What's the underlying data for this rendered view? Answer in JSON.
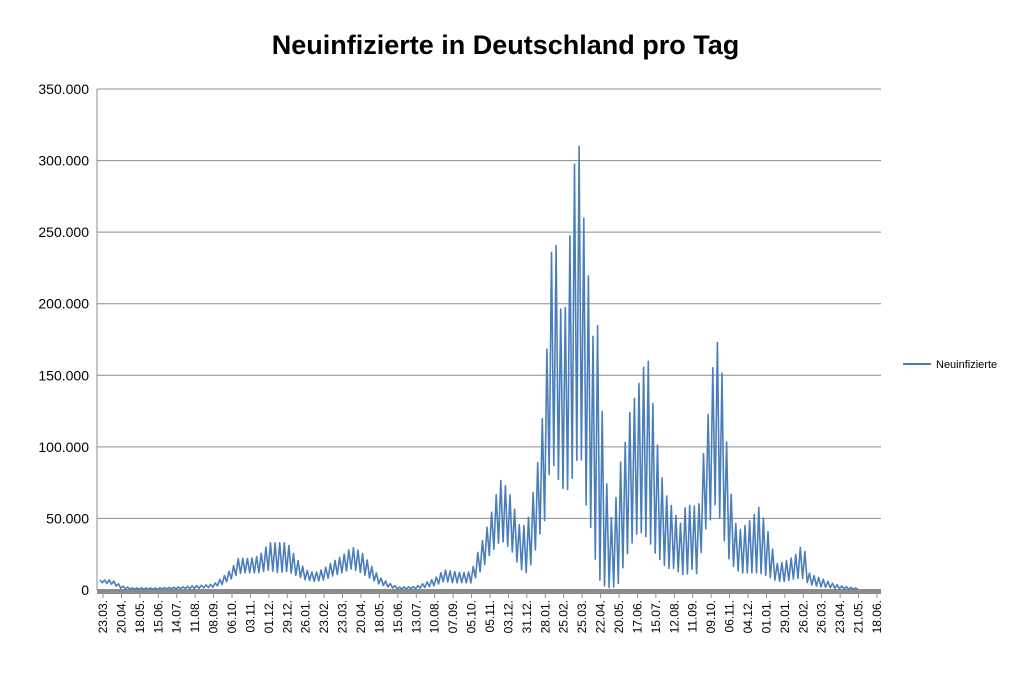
{
  "chart_data": {
    "type": "line",
    "title": "Neuinfizierte in Deutschland pro Tag",
    "xlabel": "",
    "ylabel": "",
    "ylim": [
      0,
      350000
    ],
    "y_ticks": [
      0,
      50000,
      100000,
      150000,
      200000,
      250000,
      300000,
      350000
    ],
    "y_tick_labels": [
      "0",
      "50.000",
      "100.000",
      "150.000",
      "200.000",
      "250.000",
      "300.000",
      "350.000"
    ],
    "x_tick_labels": [
      "23.03.",
      "20.04.",
      "18.05.",
      "15.06.",
      "14.07.",
      "11.08.",
      "08.09.",
      "06.10.",
      "03.11.",
      "01.12.",
      "29.12.",
      "26.01.",
      "23.02.",
      "23.03.",
      "20.04.",
      "18.05.",
      "15.06.",
      "13.07.",
      "10.08.",
      "07.09.",
      "05.10.",
      "05.11.",
      "03.12.",
      "31.12.",
      "28.01.",
      "25.02.",
      "25.03.",
      "22.04.",
      "20.05.",
      "17.06.",
      "15.07.",
      "12.08.",
      "11.09.",
      "09.10.",
      "06.11.",
      "04.12.",
      "01.01.",
      "29.01.",
      "26.02.",
      "26.03.",
      "23.04.",
      "21.05.",
      "18.06."
    ],
    "grid": true,
    "legend": "right",
    "series_color": "#4a7ebb",
    "envelope_note": "",
    "series": [
      {
        "name": "Neuinfizierte",
        "envelope_x_index": [
          0,
          0.5,
          1,
          1.5,
          2,
          3,
          4,
          5,
          6,
          6.5,
          7,
          7.3,
          7.6,
          8,
          8.5,
          9,
          9.5,
          10,
          10.5,
          11,
          11.5,
          12,
          12.5,
          13,
          13.5,
          14,
          14.5,
          15,
          15.5,
          16,
          17,
          18,
          18.5,
          19,
          19.5,
          20,
          20.3,
          20.6,
          21,
          21.3,
          21.6,
          22,
          22.3,
          22.6,
          23,
          23.3,
          23.6,
          24,
          24.2,
          24.4,
          24.6,
          24.8,
          25,
          25.2,
          25.4,
          25.6,
          25.8,
          26,
          26.2,
          26.4,
          26.6,
          26.8,
          27,
          27.2,
          27.4,
          27.6,
          27.8,
          28,
          28.3,
          28.6,
          29,
          29.3,
          29.6,
          30,
          30.3,
          30.6,
          31,
          31.3,
          31.6,
          32,
          32.3,
          32.6,
          33,
          33.2,
          33.4,
          33.6,
          33.8,
          34,
          34.3,
          34.6,
          35,
          35.3,
          35.6,
          36,
          36.3,
          36.6,
          37,
          37.3,
          37.6,
          38,
          38.3,
          38.6,
          39,
          39.5,
          40,
          40.5,
          41,
          41.5,
          42
        ],
        "envelope_high": [
          7000,
          7000,
          3000,
          1500,
          1500,
          1500,
          2000,
          3000,
          4000,
          9000,
          15000,
          22000,
          22000,
          22000,
          24000,
          33000,
          33000,
          33000,
          22000,
          14000,
          12000,
          15000,
          20000,
          24000,
          30000,
          27000,
          18000,
          9000,
          5000,
          2000,
          2500,
          8000,
          14000,
          13000,
          12000,
          13000,
          25000,
          35000,
          50000,
          65000,
          77000,
          70000,
          58000,
          45000,
          45000,
          65000,
          90000,
          140000,
          205000,
          250000,
          240000,
          200000,
          180000,
          220000,
          260000,
          300000,
          318000,
          275000,
          240000,
          210000,
          175000,
          195000,
          140000,
          105000,
          60000,
          50000,
          60000,
          85000,
          100000,
          125000,
          140000,
          155000,
          160000,
          110000,
          80000,
          65000,
          55000,
          45000,
          58000,
          60000,
          55000,
          97000,
          140000,
          175000,
          172000,
          150000,
          110000,
          75000,
          47000,
          42000,
          47000,
          52000,
          58000,
          45000,
          30000,
          18000,
          20000,
          22000,
          25000,
          33000,
          12000,
          10000,
          8000,
          5000,
          3000,
          2000,
          1000
        ],
        "envelope_low": [
          5000,
          4000,
          1000,
          500,
          500,
          500,
          800,
          1000,
          2000,
          4000,
          8000,
          11000,
          12000,
          12000,
          12000,
          14000,
          12000,
          13000,
          10000,
          7000,
          6000,
          7000,
          10000,
          12000,
          15000,
          12000,
          8000,
          4000,
          2000,
          700,
          800,
          3000,
          6000,
          5000,
          5000,
          5000,
          10000,
          15000,
          25000,
          30000,
          35000,
          30000,
          25000,
          15000,
          12000,
          20000,
          35000,
          50000,
          80000,
          90000,
          80000,
          75000,
          70000,
          70000,
          75000,
          85000,
          95000,
          90000,
          60000,
          50000,
          30000,
          15000,
          5000,
          3000,
          2000,
          1000,
          3000,
          5000,
          20000,
          30000,
          40000,
          40000,
          35000,
          25000,
          20000,
          15000,
          15000,
          12000,
          10000,
          15000,
          10000,
          40000,
          50000,
          60000,
          55000,
          40000,
          30000,
          20000,
          15000,
          12000,
          12000,
          12000,
          12000,
          10000,
          8000,
          6000,
          6000,
          7000,
          8000,
          8000,
          4000,
          3000,
          2000,
          1500,
          800,
          500,
          300
        ]
      }
    ]
  }
}
